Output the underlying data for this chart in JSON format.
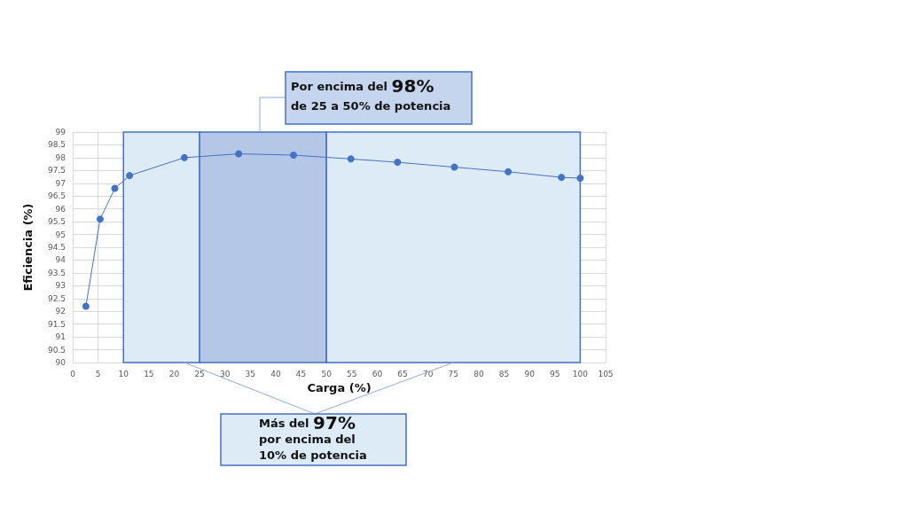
{
  "chart_data": {
    "type": "line",
    "xlabel": "Carga (%)",
    "ylabel": "Eficiencia (%)",
    "x": [
      2.6,
      5.4,
      8.3,
      11.2,
      22,
      32.7,
      43.5,
      54.8,
      64,
      75.2,
      85.8,
      96.3,
      100
    ],
    "series": [
      {
        "color": "#4472c4",
        "values": [
          92.2,
          95.6,
          96.8,
          97.3,
          98.0,
          98.15,
          98.1,
          97.95,
          97.82,
          97.63,
          97.45,
          97.23,
          97.2
        ]
      }
    ],
    "xlim": [
      0,
      105
    ],
    "xticks": [
      0,
      5,
      10,
      15,
      20,
      25,
      30,
      35,
      40,
      45,
      50,
      55,
      60,
      65,
      70,
      75,
      80,
      85,
      90,
      95,
      100,
      105
    ],
    "ylim": [
      90,
      99
    ],
    "yticks": [
      90,
      90.5,
      91,
      91.5,
      92,
      92.5,
      93,
      93.5,
      94,
      94.5,
      95,
      95.5,
      96,
      96.5,
      97,
      97.5,
      98,
      98.5,
      99
    ],
    "grid": true,
    "marker": "circle",
    "line_style": "solid",
    "bands": [
      {
        "axis": "x",
        "from": 10,
        "to": 25,
        "color": "#ddebf7"
      },
      {
        "axis": "x",
        "from": 25,
        "to": 50,
        "color": "#b4c7e7"
      },
      {
        "axis": "x",
        "from": 50,
        "to": 100,
        "color": "#ddebf7"
      }
    ],
    "annotations": [
      "Por encima del 98%\nde 25 a 50% de potencia",
      "Más del 97%\npor encima del\n10% de potencia"
    ]
  }
}
